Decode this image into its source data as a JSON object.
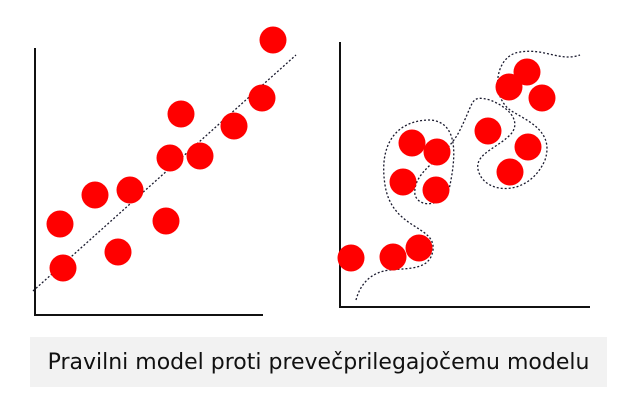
{
  "caption": "Pravilni model proti prevečprilegajočemu modelu",
  "colors": {
    "points": "#ff0000",
    "axes": "#111111",
    "fit_line": "#1a1a2e",
    "caption_bg": "#f2f2f2"
  },
  "panels": [
    {
      "name": "good-fit",
      "fit": "straight dotted line"
    },
    {
      "name": "overfit",
      "fit": "wavy dotted curve"
    }
  ]
}
